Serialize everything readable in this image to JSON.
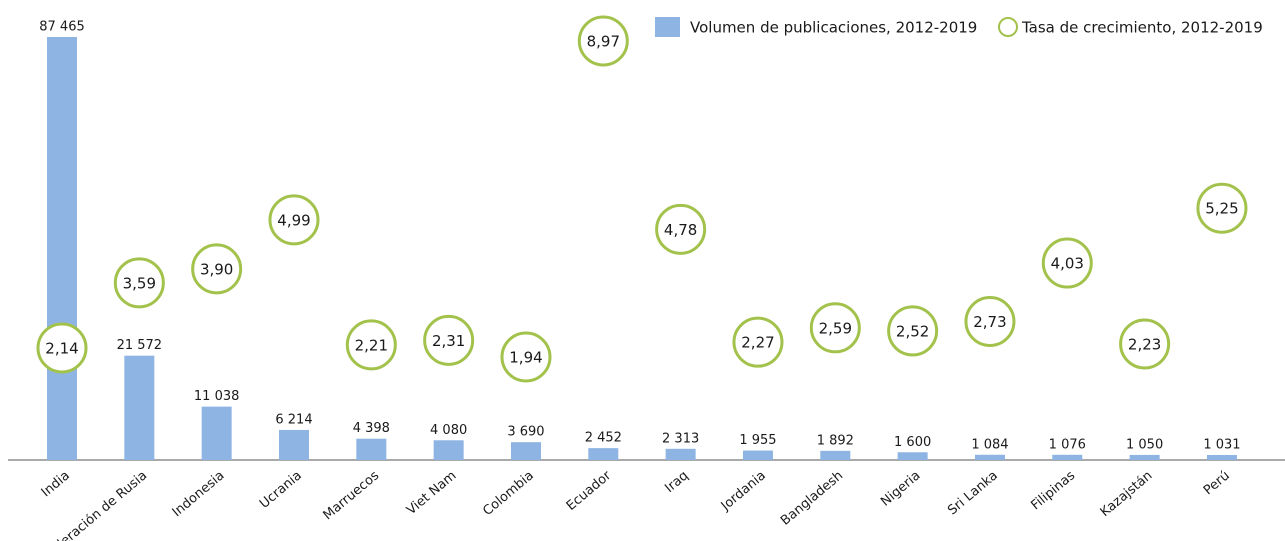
{
  "chart_data": {
    "type": "bar",
    "categories": [
      "India",
      "Federación de Rusia",
      "Indonesia",
      "Ucrania",
      "Marruecos",
      "Viet Nam",
      "Colombia",
      "Ecuador",
      "Iraq",
      "Jordania",
      "Bangladesh",
      "Nigeria",
      "Sri Lanka",
      "Filipinas",
      "Kazajstán",
      "Perú"
    ],
    "legend": "top-right",
    "series": [
      {
        "name": "Volumen de publicaciones, 2012-2019",
        "color": "#8db4e2",
        "marker": "bar",
        "values": [
          87465,
          21572,
          11038,
          6214,
          4398,
          4080,
          3690,
          2452,
          2313,
          1955,
          1892,
          1600,
          1084,
          1076,
          1050,
          1031
        ],
        "value_labels": [
          "87 465",
          "21 572",
          "11 038",
          "6 214",
          "4 398",
          "4 080",
          "3 690",
          "2 452",
          "2 313",
          "1 955",
          "1 892",
          "1 600",
          "1 084",
          "1 076",
          "1 050",
          "1 031"
        ]
      },
      {
        "name": "Tasa de crecimiento, 2012-2019",
        "color": "#a3c24c",
        "marker": "circle",
        "values": [
          2.14,
          3.59,
          3.9,
          4.99,
          2.21,
          2.31,
          1.94,
          8.97,
          4.78,
          2.27,
          2.59,
          2.52,
          2.73,
          4.03,
          2.23,
          5.25
        ],
        "value_labels": [
          "2,14",
          "3,59",
          "3,90",
          "4,99",
          "2,21",
          "2,31",
          "1,94",
          "8,97",
          "4,78",
          "2,27",
          "2,59",
          "2,52",
          "2,73",
          "4,03",
          "2,23",
          "5,25"
        ]
      }
    ]
  }
}
